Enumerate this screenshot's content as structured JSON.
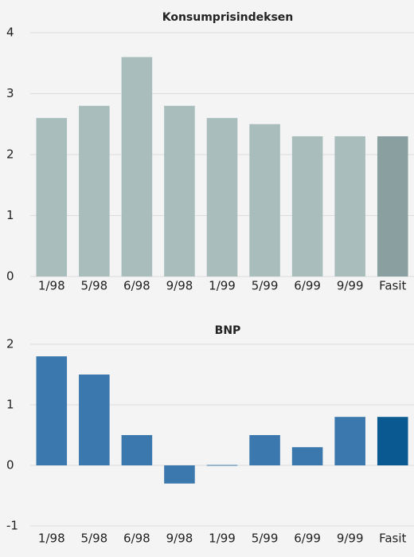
{
  "chart_data": [
    {
      "type": "bar",
      "title": "Konsumprisindeksen",
      "categories": [
        "1/98",
        "5/98",
        "6/98",
        "9/98",
        "1/99",
        "5/99",
        "6/99",
        "9/99",
        "Fasit"
      ],
      "values": [
        2.6,
        2.8,
        3.6,
        2.8,
        2.6,
        2.5,
        2.3,
        2.3,
        2.3
      ],
      "colors": [
        "#a9bdbd",
        "#a9bdbd",
        "#a9bdbd",
        "#a9bdbd",
        "#a9bdbd",
        "#a9bdbd",
        "#a9bdbd",
        "#a9bdbd",
        "#8aa0a0"
      ],
      "ylim": [
        0,
        4
      ],
      "yticks": [
        0,
        1,
        2,
        3,
        4
      ],
      "grid": true
    },
    {
      "type": "bar",
      "title": "BNP",
      "categories": [
        "1/98",
        "5/98",
        "6/98",
        "9/98",
        "1/99",
        "5/99",
        "6/99",
        "9/99",
        "Fasit"
      ],
      "values": [
        1.8,
        1.5,
        0.5,
        -0.3,
        0,
        0.5,
        0.3,
        0.8,
        0.8
      ],
      "colors": [
        "#3a78ae",
        "#3a78ae",
        "#3a78ae",
        "#3a78ae",
        "#3a78ae",
        "#3a78ae",
        "#3a78ae",
        "#3a78ae",
        "#0a5a91"
      ],
      "ylim": [
        -1,
        2
      ],
      "yticks": [
        -1,
        0,
        1,
        2
      ],
      "grid": true
    }
  ]
}
